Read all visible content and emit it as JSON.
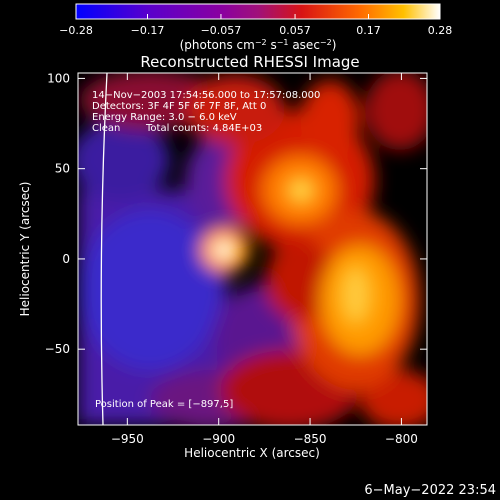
{
  "chart_data": {
    "type": "heatmap",
    "title": "Reconstructed RHESSI Image",
    "xlabel": "Heliocentric X (arcsec)",
    "ylabel": "Heliocentric Y (arcsec)",
    "xlim": [
      -977,
      -786
    ],
    "ylim": [
      -92,
      103
    ],
    "x_ticks": [
      -950,
      -900,
      -850,
      -800
    ],
    "x_tick_labels": [
      "−950",
      "−900",
      "−850",
      "−800"
    ],
    "y_ticks": [
      100,
      50,
      0,
      -50
    ],
    "y_tick_labels": [
      "100",
      "50",
      "0",
      "−50"
    ],
    "colorbar": {
      "min": -0.28,
      "max": 0.28,
      "ticks": [
        -0.28,
        -0.17,
        -0.057,
        0.057,
        0.17,
        0.28
      ],
      "tick_labels": [
        "−0.28",
        "−0.17",
        "−0.057",
        "0.057",
        "0.17",
        "0.28"
      ],
      "unit_prefix": "(photons cm",
      "unit_exp1": "−2",
      "unit_mid1": " s",
      "unit_exp2": "−1",
      "unit_mid2": " asec",
      "unit_exp3": "−2",
      "unit_suffix": ")"
    },
    "annotations": {
      "time": "14−Nov−2003 17:54:56.000 to 17:57:08.000",
      "detectors": "Detectors: 3F 4F 5F 6F 7F 8F, Att 0",
      "energy": "Energy Range: 3.0 − 6.0 keV",
      "algorithm": "Clean",
      "counts": "Total counts: 4.84E+03",
      "peak": "Position of Peak = [−897,5]"
    },
    "sources": [
      {
        "x": -897,
        "y": 5,
        "peak": 0.28
      },
      {
        "x": -855,
        "y": 38,
        "peak": 0.2
      },
      {
        "x": -825,
        "y": -20,
        "peak": 0.17
      }
    ],
    "solar_limb_visible": true
  },
  "footer": {
    "date": "6−May−2022 23:54"
  },
  "colors": {
    "background": "#000000",
    "text": "#ffffff",
    "limb": "#ffffff"
  }
}
